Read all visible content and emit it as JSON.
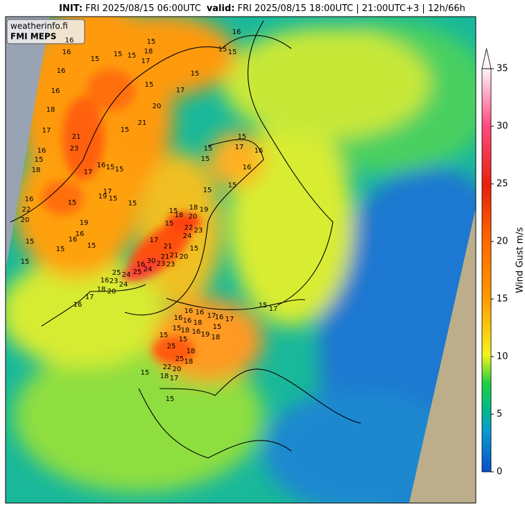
{
  "header": {
    "init_label": "INIT:",
    "init_time": "FRI 2025/08/15 06:00UTC",
    "valid_label": "valid:",
    "valid_time": "FRI 2025/08/15 18:00UTC | 21:00UTC+3 | 12h/66h"
  },
  "watermark": {
    "site": "weatherinfo.fi",
    "model": "FMI MEPS"
  },
  "colorbar": {
    "label": "Wind Gust m/s",
    "range": [
      0,
      35
    ],
    "ticks": [
      0,
      5,
      10,
      15,
      20,
      25,
      30,
      35
    ]
  },
  "gust_labels": [
    16,
    15,
    15,
    15,
    17,
    20,
    15,
    15,
    18,
    17,
    15,
    15,
    15,
    16,
    16,
    16,
    16,
    18,
    17,
    16,
    15,
    18,
    16,
    22,
    20,
    15,
    15,
    21,
    23,
    17,
    16,
    15,
    15,
    15,
    17,
    19,
    15,
    15,
    19,
    16,
    16,
    15,
    15,
    15,
    21,
    15,
    15,
    15,
    17,
    16,
    16,
    15,
    15,
    18,
    19,
    15,
    15,
    18,
    20,
    22,
    23,
    24,
    21,
    21,
    21,
    20,
    15,
    17,
    30,
    16,
    23,
    23,
    24,
    25,
    25,
    24,
    23,
    24,
    16,
    18,
    20,
    17,
    16,
    16,
    16,
    17,
    16,
    16,
    18,
    17,
    16,
    15,
    17,
    15,
    18,
    16,
    19,
    18,
    15,
    15,
    15,
    25,
    18,
    25,
    18,
    22,
    20,
    18,
    17,
    15,
    15
  ]
}
